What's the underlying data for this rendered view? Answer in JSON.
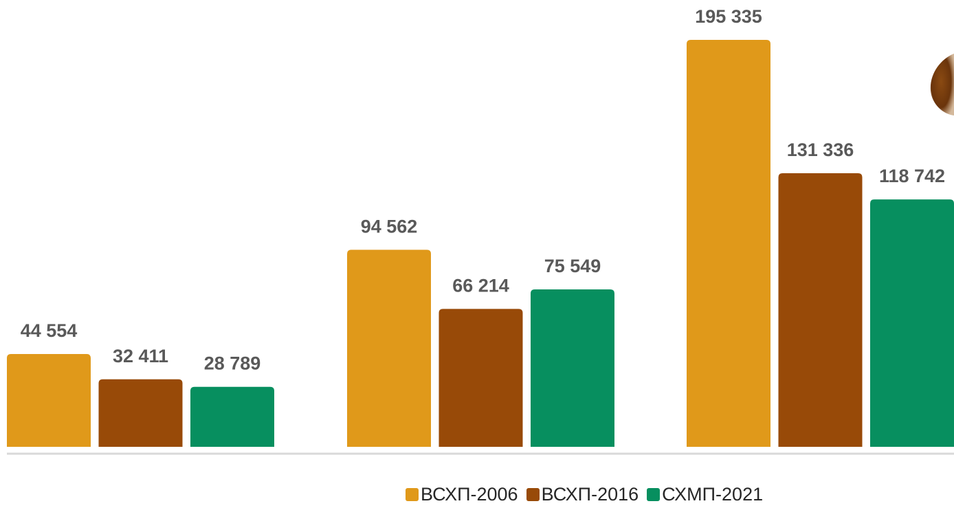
{
  "chart_data": {
    "type": "bar",
    "title": "",
    "xlabel": "",
    "ylabel": "",
    "categories": [
      "",
      "",
      ""
    ],
    "ylim": [
      0,
      200000
    ],
    "grid": false,
    "legend_position": "bottom",
    "series": [
      {
        "name": "ВСХП-2006",
        "color": "#E0991A",
        "values": [
          44554,
          94562,
          195335
        ],
        "labels": [
          "44 554",
          "94 562",
          "195 335"
        ]
      },
      {
        "name": "ВСХП-2016",
        "color": "#984A08",
        "values": [
          32411,
          66214,
          131336
        ],
        "labels": [
          "32 411",
          "66 214",
          "131 336"
        ]
      },
      {
        "name": "СХМП-2021",
        "color": "#078F5F",
        "values": [
          28789,
          75549,
          118742
        ],
        "labels": [
          "28 789",
          "75 549",
          "118 742"
        ]
      }
    ]
  }
}
